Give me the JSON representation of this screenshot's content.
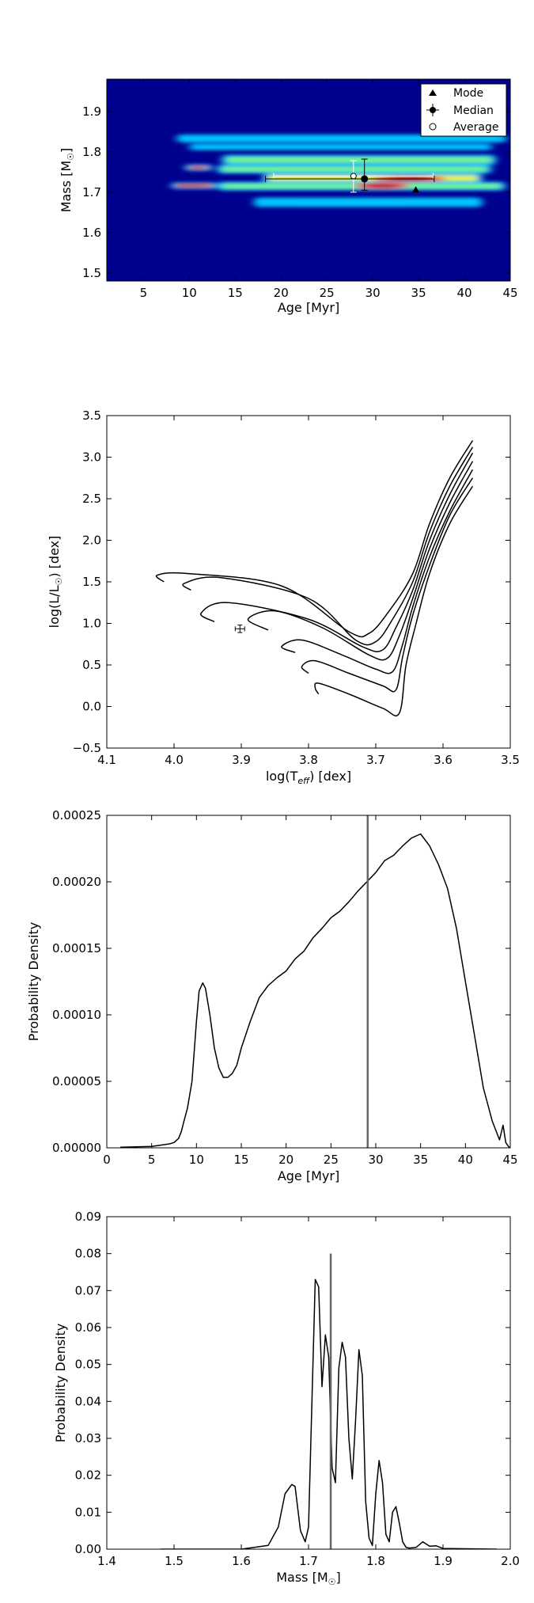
{
  "chart_data": [
    {
      "type": "heatmap",
      "xlabel": "Age [Myr]",
      "ylabel": "Mass [M",
      "ylabel_sub": "☉",
      "ylabel_end": "]",
      "xlim": [
        1,
        45
      ],
      "ylim": [
        1.48,
        1.98
      ],
      "xticks": [
        5,
        10,
        15,
        20,
        25,
        30,
        35,
        40,
        45
      ],
      "yticks": [
        1.5,
        1.6,
        1.7,
        1.8,
        1.9
      ],
      "xtick_labels": [
        "5",
        "10",
        "15",
        "20",
        "25",
        "30",
        "35",
        "40",
        "45"
      ],
      "ytick_labels": [
        "1.5",
        "1.6",
        "1.7",
        "1.8",
        "1.9"
      ],
      "colors": {
        "background": "#00008f",
        "cool": "#00c8ff",
        "mid": "#7fff7f",
        "warm": "#ffff00",
        "hot": "#ff4000",
        "peak": "#c00000"
      },
      "bands": [
        {
          "mass": 1.833,
          "x0": 8.6,
          "x1": 44.6,
          "width": 0.01,
          "intensity": 0.35
        },
        {
          "mass": 1.812,
          "x0": 10,
          "x1": 43,
          "width": 0.008,
          "intensity": 0.3
        },
        {
          "mass": 1.78,
          "x0": 13.5,
          "x1": 43.5,
          "width": 0.013,
          "intensity": 0.6
        },
        {
          "mass": 1.761,
          "x0": 9.5,
          "x1": 12.5,
          "width": 0.008,
          "intensity": 0.95
        },
        {
          "mass": 1.757,
          "x0": 13,
          "x1": 43,
          "width": 0.011,
          "intensity": 0.55
        },
        {
          "mass": 1.735,
          "x0": 18,
          "x1": 42,
          "width": 0.012,
          "intensity": 0.75
        },
        {
          "mass": 1.716,
          "x0": 8.0,
          "x1": 13,
          "width": 0.008,
          "intensity": 0.95
        },
        {
          "mass": 1.715,
          "x0": 13,
          "x1": 44.5,
          "width": 0.011,
          "intensity": 0.7
        },
        {
          "mass": 1.675,
          "x0": 17,
          "x1": 42,
          "width": 0.012,
          "intensity": 0.4
        }
      ],
      "hot_spots": [
        {
          "x": 34,
          "mass": 1.733,
          "rx": 4,
          "intensity": 1.0
        },
        {
          "x": 31,
          "mass": 1.716,
          "rx": 3,
          "intensity": 0.85
        }
      ],
      "markers": {
        "mode": {
          "age": 34.7,
          "mass": 1.705
        },
        "median": {
          "age": 29.1,
          "mass": 1.733,
          "xerr": [
            18.3,
            36.7
          ],
          "yerr": [
            1.705,
            1.782
          ]
        },
        "average": {
          "age": 27.9,
          "mass": 1.74,
          "xerr": [
            19.2,
            36.6
          ],
          "yerr": [
            1.7,
            1.778
          ]
        }
      },
      "legend": [
        {
          "symbol": "triangle",
          "label": "Mode"
        },
        {
          "symbol": "errorbar-dot",
          "label": "Median"
        },
        {
          "symbol": "circle",
          "label": "Average"
        }
      ],
      "legend_position": "top-right"
    },
    {
      "type": "line",
      "xlabel": "log(T",
      "xlabel_sub": "eff",
      "xlabel_end": ") [dex]",
      "ylabel": "log(L/L",
      "ylabel_sub": "☉",
      "ylabel_end": ") [dex]",
      "xlim": [
        4.1,
        3.5
      ],
      "ylim": [
        -0.5,
        3.5
      ],
      "xticks": [
        4.1,
        4.0,
        3.9,
        3.8,
        3.7,
        3.6,
        3.5
      ],
      "yticks": [
        -0.5,
        0.0,
        0.5,
        1.0,
        1.5,
        2.0,
        2.5,
        3.0,
        3.5
      ],
      "xtick_labels": [
        "4.1",
        "4.0",
        "3.9",
        "3.8",
        "3.7",
        "3.6",
        "3.5"
      ],
      "ytick_labels": [
        "−0.5",
        "0.0",
        "0.5",
        "1.0",
        "1.5",
        "2.0",
        "2.5",
        "3.0",
        "3.5"
      ],
      "tracks": [
        [
          [
            3.785,
            0.15
          ],
          [
            3.79,
            0.22
          ],
          [
            3.785,
            0.28
          ],
          [
            3.74,
            0.15
          ],
          [
            3.69,
            -0.02
          ],
          [
            3.665,
            -0.08
          ],
          [
            3.655,
            0.5
          ],
          [
            3.64,
            1.0
          ],
          [
            3.62,
            1.6
          ],
          [
            3.59,
            2.2
          ],
          [
            3.556,
            2.65
          ]
        ],
        [
          [
            3.8,
            0.4
          ],
          [
            3.81,
            0.48
          ],
          [
            3.79,
            0.55
          ],
          [
            3.74,
            0.4
          ],
          [
            3.69,
            0.25
          ],
          [
            3.67,
            0.2
          ],
          [
            3.66,
            0.6
          ],
          [
            3.645,
            1.1
          ],
          [
            3.62,
            1.7
          ],
          [
            3.59,
            2.3
          ],
          [
            3.556,
            2.75
          ]
        ],
        [
          [
            3.82,
            0.65
          ],
          [
            3.84,
            0.72
          ],
          [
            3.81,
            0.8
          ],
          [
            3.75,
            0.62
          ],
          [
            3.7,
            0.45
          ],
          [
            3.675,
            0.42
          ],
          [
            3.66,
            0.75
          ],
          [
            3.645,
            1.2
          ],
          [
            3.62,
            1.8
          ],
          [
            3.59,
            2.35
          ],
          [
            3.556,
            2.85
          ]
        ],
        [
          [
            3.86,
            0.92
          ],
          [
            3.89,
            1.05
          ],
          [
            3.85,
            1.15
          ],
          [
            3.78,
            0.95
          ],
          [
            3.71,
            0.62
          ],
          [
            3.683,
            0.58
          ],
          [
            3.665,
            0.85
          ],
          [
            3.645,
            1.3
          ],
          [
            3.62,
            1.9
          ],
          [
            3.59,
            2.45
          ],
          [
            3.556,
            2.95
          ]
        ],
        [
          [
            3.94,
            1.02
          ],
          [
            3.96,
            1.12
          ],
          [
            3.92,
            1.25
          ],
          [
            3.8,
            1.05
          ],
          [
            3.72,
            0.72
          ],
          [
            3.69,
            0.68
          ],
          [
            3.67,
            0.95
          ],
          [
            3.645,
            1.4
          ],
          [
            3.62,
            2.0
          ],
          [
            3.59,
            2.55
          ],
          [
            3.556,
            3.05
          ]
        ],
        [
          [
            3.975,
            1.4
          ],
          [
            3.985,
            1.48
          ],
          [
            3.93,
            1.55
          ],
          [
            3.8,
            1.3
          ],
          [
            3.73,
            0.8
          ],
          [
            3.7,
            0.78
          ],
          [
            3.675,
            1.05
          ],
          [
            3.645,
            1.5
          ],
          [
            3.62,
            2.1
          ],
          [
            3.59,
            2.65
          ],
          [
            3.556,
            3.12
          ]
        ],
        [
          [
            4.015,
            1.5
          ],
          [
            4.025,
            1.58
          ],
          [
            3.98,
            1.6
          ],
          [
            3.84,
            1.45
          ],
          [
            3.74,
            0.9
          ],
          [
            3.71,
            0.88
          ],
          [
            3.68,
            1.15
          ],
          [
            3.645,
            1.6
          ],
          [
            3.62,
            2.2
          ],
          [
            3.59,
            2.75
          ],
          [
            3.556,
            3.2
          ]
        ]
      ],
      "point": {
        "x": 3.902,
        "y": 0.935,
        "xerr": 0.007,
        "yerr": 0.045
      }
    },
    {
      "type": "line",
      "xlabel": "Age [Myr]",
      "ylabel": "Probability Density",
      "xlim": [
        0,
        45
      ],
      "ylim": [
        0,
        0.00025
      ],
      "xticks": [
        0,
        5,
        10,
        15,
        20,
        25,
        30,
        35,
        40,
        45
      ],
      "yticks": [
        0,
        5e-05,
        0.0001,
        0.00015,
        0.0002,
        0.00025
      ],
      "xtick_labels": [
        "0",
        "5",
        "10",
        "15",
        "20",
        "25",
        "30",
        "35",
        "40",
        "45"
      ],
      "ytick_labels": [
        "0.00000",
        "0.00005",
        "0.00010",
        "0.00015",
        "0.00020",
        "0.00025"
      ],
      "x": [
        1.5,
        5,
        6,
        7,
        7.5,
        8,
        8.3,
        8.6,
        9,
        9.5,
        10,
        10.3,
        10.7,
        11,
        11.5,
        12,
        12.5,
        13,
        13.5,
        14,
        14.5,
        15,
        16,
        17,
        18,
        19,
        20,
        21,
        22,
        23,
        24,
        25,
        26,
        27,
        28,
        29,
        30,
        31,
        32,
        33,
        34,
        35,
        36,
        37,
        38,
        39,
        40,
        41,
        42,
        43,
        43.8,
        44.2,
        44.5,
        44.8,
        45
      ],
      "y": [
        5e-07,
        1e-06,
        2e-06,
        3e-06,
        4e-06,
        7e-06,
        1.2e-05,
        2e-05,
        3e-05,
        5e-05,
        9.5e-05,
        0.000118,
        0.000124,
        0.00012,
        0.0001,
        7.5e-05,
        6e-05,
        5.3e-05,
        5.3e-05,
        5.6e-05,
        6.2e-05,
        7.5e-05,
        9.5e-05,
        0.000113,
        0.000122,
        0.000128,
        0.000133,
        0.000142,
        0.000148,
        0.000158,
        0.000165,
        0.000173,
        0.000178,
        0.000185,
        0.000193,
        0.0002,
        0.000207,
        0.000216,
        0.00022,
        0.000227,
        0.000233,
        0.000236,
        0.000227,
        0.000213,
        0.000195,
        0.000165,
        0.000125,
        8.5e-05,
        4.5e-05,
        2e-05,
        6e-06,
        1.7e-05,
        4e-06,
        1e-06,
        0.0
      ],
      "vline": 29.1
    },
    {
      "type": "line",
      "xlabel": "Mass [M",
      "xlabel_sub": "☉",
      "xlabel_end": "]",
      "ylabel": "Probability Density",
      "xlim": [
        1.4,
        2.0
      ],
      "ylim": [
        0,
        0.09
      ],
      "xticks": [
        1.4,
        1.5,
        1.6,
        1.7,
        1.8,
        1.9,
        2.0
      ],
      "yticks": [
        0,
        0.01,
        0.02,
        0.03,
        0.04,
        0.05,
        0.06,
        0.07,
        0.08,
        0.09
      ],
      "xtick_labels": [
        "1.4",
        "1.5",
        "1.6",
        "1.7",
        "1.8",
        "1.9",
        "2.0"
      ],
      "ytick_labels": [
        "0.00",
        "0.01",
        "0.02",
        "0.03",
        "0.04",
        "0.05",
        "0.06",
        "0.07",
        "0.08",
        "0.09"
      ],
      "x": [
        1.48,
        1.6,
        1.64,
        1.655,
        1.665,
        1.675,
        1.68,
        1.688,
        1.695,
        1.7,
        1.705,
        1.71,
        1.715,
        1.72,
        1.725,
        1.73,
        1.735,
        1.74,
        1.745,
        1.75,
        1.755,
        1.76,
        1.765,
        1.77,
        1.775,
        1.78,
        1.785,
        1.79,
        1.795,
        1.8,
        1.805,
        1.81,
        1.815,
        1.82,
        1.825,
        1.83,
        1.835,
        1.84,
        1.845,
        1.85,
        1.86,
        1.87,
        1.88,
        1.89,
        1.9,
        1.98
      ],
      "y": [
        0.0,
        0.0,
        0.001,
        0.006,
        0.015,
        0.0175,
        0.017,
        0.005,
        0.002,
        0.006,
        0.04,
        0.073,
        0.071,
        0.044,
        0.058,
        0.052,
        0.022,
        0.018,
        0.049,
        0.056,
        0.052,
        0.03,
        0.019,
        0.035,
        0.054,
        0.047,
        0.013,
        0.003,
        0.001,
        0.015,
        0.024,
        0.018,
        0.004,
        0.002,
        0.01,
        0.0115,
        0.007,
        0.002,
        0.0005,
        0.0003,
        0.0005,
        0.002,
        0.0008,
        0.0009,
        0.0002,
        0.0
      ],
      "vline": 1.733,
      "vline_top": 0.08
    }
  ]
}
